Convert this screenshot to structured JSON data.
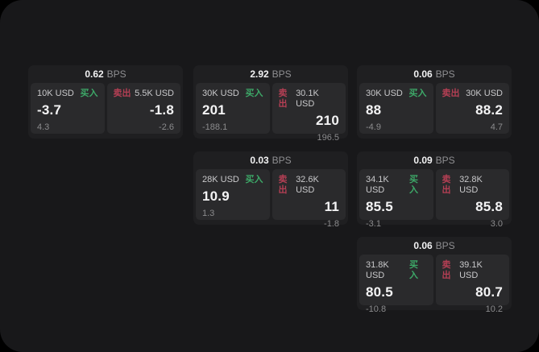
{
  "labels": {
    "bps": "BPS",
    "buy": "买入",
    "sell": "卖出"
  },
  "colors": {
    "outer_bg": "#000000",
    "surface_bg": "#18181a",
    "card_bg": "#1f1f21",
    "panel_bg": "#2a2a2c",
    "buy_green": "#3da868",
    "sell_red": "#b43f54",
    "primary_text": "#f4f4f5",
    "muted_text": "#8b8b8d"
  },
  "cards": [
    {
      "bps": "0.62",
      "buy": {
        "amount": "10K USD",
        "price": "-3.7",
        "delta": "4.3"
      },
      "sell": {
        "amount": "5.5K USD",
        "price": "-1.8",
        "delta": "-2.6"
      }
    },
    {
      "bps": "2.92",
      "buy": {
        "amount": "30K USD",
        "price": "201",
        "delta": "-188.1"
      },
      "sell": {
        "amount": "30.1K USD",
        "price": "210",
        "delta": "196.5"
      }
    },
    {
      "bps": "0.06",
      "buy": {
        "amount": "30K USD",
        "price": "88",
        "delta": "-4.9"
      },
      "sell": {
        "amount": "30K USD",
        "price": "88.2",
        "delta": "4.7"
      }
    },
    {
      "bps": "0.03",
      "buy": {
        "amount": "28K USD",
        "price": "10.9",
        "delta": "1.3"
      },
      "sell": {
        "amount": "32.6K USD",
        "price": "11",
        "delta": "-1.8"
      }
    },
    {
      "bps": "0.09",
      "buy": {
        "amount": "34.1K USD",
        "price": "85.5",
        "delta": "-3.1"
      },
      "sell": {
        "amount": "32.8K USD",
        "price": "85.8",
        "delta": "3.0"
      }
    },
    {
      "bps": "0.06",
      "buy": {
        "amount": "31.8K USD",
        "price": "80.5",
        "delta": "-10.8"
      },
      "sell": {
        "amount": "39.1K USD",
        "price": "80.7",
        "delta": "10.2"
      }
    }
  ]
}
